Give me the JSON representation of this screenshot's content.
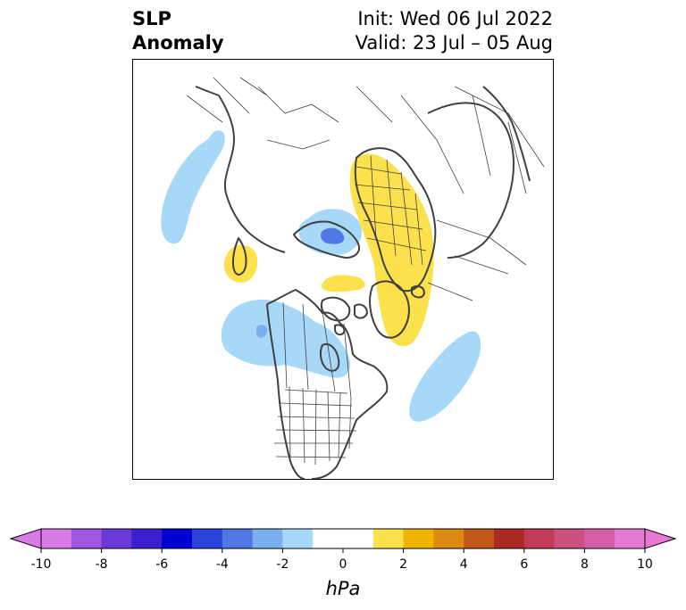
{
  "header": {
    "title_line1": "SLP",
    "title_line2": "Anomaly",
    "init_text": "Init: Wed 06 Jul 2022",
    "valid_text": "Valid: 23 Jul – 05 Aug"
  },
  "colorbar": {
    "unit_label": "hPa",
    "min": -10,
    "max": 10,
    "step": 1,
    "tick_labels": [
      "-10",
      "-8",
      "-6",
      "-4",
      "-2",
      "0",
      "2",
      "4",
      "6",
      "8",
      "10"
    ],
    "underflow_color": "#d97ae8",
    "overflow_color": "#e87ad6",
    "colors": [
      "#d97ae8",
      "#9e56e0",
      "#6a3ad8",
      "#3d1ed1",
      "#0000d0",
      "#2a42d8",
      "#4f78e6",
      "#7ab0f0",
      "#a8d8f8",
      "#ffffff",
      "#ffffff",
      "#fbe14c",
      "#f0b400",
      "#dc8a10",
      "#c45818",
      "#ad2a24",
      "#c23a58",
      "#cc4f80",
      "#d660a8",
      "#e87ad6"
    ]
  },
  "map": {
    "projection": "north-polar-stereographic",
    "coastline_color": "#404040",
    "border_color": "#404040"
  }
}
